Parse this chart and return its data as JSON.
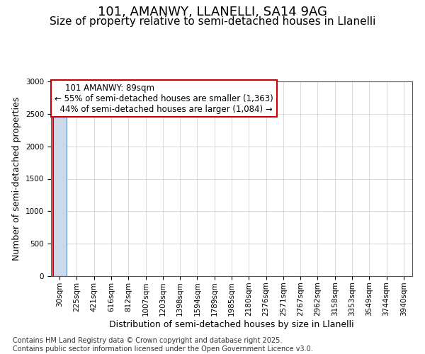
{
  "title1": "101, AMANWY, LLANELLI, SA14 9AG",
  "title2": "Size of property relative to semi-detached houses in Llanelli",
  "xlabel": "Distribution of semi-detached houses by size in Llanelli",
  "ylabel": "Number of semi-detached properties",
  "property_label": "101 AMANWY: 89sqm",
  "smaller_pct": "55% of semi-detached houses are smaller (1,363)",
  "larger_pct": "44% of semi-detached houses are larger (1,084)",
  "bin_labels": [
    "30sqm",
    "225sqm",
    "421sqm",
    "616sqm",
    "812sqm",
    "1007sqm",
    "1203sqm",
    "1398sqm",
    "1594sqm",
    "1789sqm",
    "1985sqm",
    "2180sqm",
    "2376sqm",
    "2571sqm",
    "2767sqm",
    "2962sqm",
    "3158sqm",
    "3353sqm",
    "3549sqm",
    "3744sqm",
    "3940sqm"
  ],
  "bar_heights": [
    2450,
    5,
    2,
    1,
    1,
    1,
    0,
    0,
    0,
    0,
    0,
    0,
    0,
    0,
    0,
    0,
    0,
    0,
    0,
    0,
    0
  ],
  "bar_color": "#ccd9e8",
  "bar_edge_color": "#5b8db8",
  "property_line_color": "#cc0000",
  "property_bin_index": 0,
  "ylim": [
    0,
    3000
  ],
  "yticks": [
    0,
    500,
    1000,
    1500,
    2000,
    2500,
    3000
  ],
  "grid_color": "#cccccc",
  "background_color": "#ffffff",
  "footer_text": "Contains HM Land Registry data © Crown copyright and database right 2025.\nContains public sector information licensed under the Open Government Licence v3.0.",
  "title1_fontsize": 13,
  "title2_fontsize": 11,
  "xlabel_fontsize": 9,
  "ylabel_fontsize": 9,
  "tick_fontsize": 7.5,
  "annotation_fontsize": 8.5,
  "footer_fontsize": 7
}
